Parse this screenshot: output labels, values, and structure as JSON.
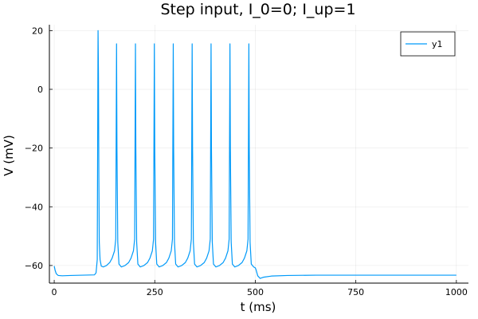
{
  "chart_data": {
    "type": "line",
    "title": "Step input, I_0=0; I_up=1",
    "xlabel": "t (ms)",
    "ylabel": "V (mV)",
    "xlim": [
      -12,
      1030
    ],
    "ylim": [
      -66,
      22
    ],
    "xticks": [
      0,
      250,
      500,
      750,
      1000
    ],
    "yticks": [
      -60,
      -40,
      -20,
      0,
      20
    ],
    "xtick_labels": [
      "0",
      "250",
      "500",
      "750",
      "1000"
    ],
    "ytick_labels": [
      "−60",
      "−40",
      "−20",
      "0",
      "20"
    ],
    "grid": true,
    "legend_position": "top-right",
    "series_color": "#009af9",
    "series": [
      {
        "name": "y1",
        "points": [
          [
            0,
            -60.2
          ],
          [
            2,
            -61.5
          ],
          [
            5,
            -62.8
          ],
          [
            10,
            -63.4
          ],
          [
            20,
            -63.5
          ],
          [
            40,
            -63.4
          ],
          [
            70,
            -63.3
          ],
          [
            100,
            -63.2
          ],
          [
            104,
            -62.5
          ],
          [
            107,
            -58
          ],
          [
            109,
            20
          ],
          [
            110,
            5
          ],
          [
            111,
            -30
          ],
          [
            112,
            -52
          ],
          [
            114,
            -58
          ],
          [
            117,
            -60.2
          ],
          [
            122,
            -60.5
          ],
          [
            130,
            -60.0
          ],
          [
            138,
            -59
          ],
          [
            144,
            -57.5
          ],
          [
            150,
            -55
          ],
          [
            153,
            -51
          ],
          [
            155,
            15.5
          ],
          [
            156,
            -20
          ],
          [
            158,
            -52
          ],
          [
            161,
            -59.5
          ],
          [
            167,
            -60.5
          ],
          [
            176,
            -60.0
          ],
          [
            185,
            -59
          ],
          [
            191,
            -57.5
          ],
          [
            197,
            -55
          ],
          [
            200,
            -51
          ],
          [
            202,
            15.5
          ],
          [
            203,
            -20
          ],
          [
            205,
            -52
          ],
          [
            208,
            -59.5
          ],
          [
            214,
            -60.5
          ],
          [
            223,
            -60.0
          ],
          [
            232,
            -59
          ],
          [
            238,
            -57.5
          ],
          [
            244,
            -55
          ],
          [
            247,
            -51
          ],
          [
            249,
            15.5
          ],
          [
            250,
            -20
          ],
          [
            252,
            -52
          ],
          [
            255,
            -59.5
          ],
          [
            261,
            -60.5
          ],
          [
            270,
            -60.0
          ],
          [
            279,
            -59
          ],
          [
            285,
            -57.5
          ],
          [
            291,
            -55
          ],
          [
            294,
            -51
          ],
          [
            296,
            15.5
          ],
          [
            297,
            -20
          ],
          [
            299,
            -52
          ],
          [
            302,
            -59.5
          ],
          [
            308,
            -60.5
          ],
          [
            317,
            -60.0
          ],
          [
            326,
            -59
          ],
          [
            332,
            -57.5
          ],
          [
            338,
            -55
          ],
          [
            341,
            -51
          ],
          [
            343,
            15.5
          ],
          [
            344,
            -20
          ],
          [
            346,
            -52
          ],
          [
            349,
            -59.5
          ],
          [
            355,
            -60.5
          ],
          [
            364,
            -60.0
          ],
          [
            373,
            -59
          ],
          [
            379,
            -57.5
          ],
          [
            385,
            -55
          ],
          [
            388,
            -51
          ],
          [
            390,
            15.5
          ],
          [
            391,
            -20
          ],
          [
            393,
            -52
          ],
          [
            396,
            -59.5
          ],
          [
            402,
            -60.5
          ],
          [
            411,
            -60.0
          ],
          [
            420,
            -59
          ],
          [
            426,
            -57.5
          ],
          [
            432,
            -55
          ],
          [
            435,
            -51
          ],
          [
            437,
            15.5
          ],
          [
            438,
            -20
          ],
          [
            440,
            -52
          ],
          [
            443,
            -59.5
          ],
          [
            449,
            -60.5
          ],
          [
            458,
            -60.0
          ],
          [
            467,
            -59
          ],
          [
            473,
            -57.5
          ],
          [
            479,
            -55
          ],
          [
            482,
            -51
          ],
          [
            484,
            15.5
          ],
          [
            485,
            -20
          ],
          [
            487,
            -52
          ],
          [
            490,
            -59.5
          ],
          [
            496,
            -60.5
          ],
          [
            500,
            -60.8
          ],
          [
            502,
            -61.5
          ],
          [
            506,
            -63.5
          ],
          [
            512,
            -64.4
          ],
          [
            520,
            -64.0
          ],
          [
            540,
            -63.6
          ],
          [
            580,
            -63.4
          ],
          [
            650,
            -63.3
          ],
          [
            800,
            -63.3
          ],
          [
            1000,
            -63.3
          ]
        ]
      }
    ]
  }
}
